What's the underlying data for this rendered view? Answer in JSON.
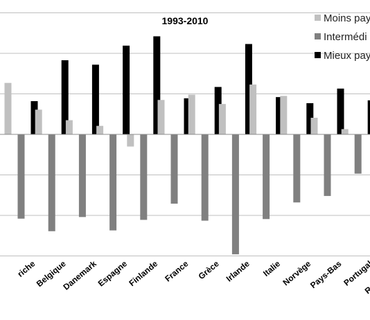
{
  "chart_data": {
    "type": "bar",
    "title": "1993-2010",
    "xlabel": "",
    "ylabel": "",
    "ylim": [
      -3,
      3
    ],
    "grid": true,
    "legend_position": "top-right",
    "categories": [
      "Autriche",
      "Belgique",
      "Danemark",
      "Espagne",
      "Finlande",
      "France",
      "Grèce",
      "Irlande",
      "Italie",
      "Norvège",
      "Pays-Bas",
      "Portugal",
      "Royaume-Uni"
    ],
    "category_labels_visible": [
      "riche",
      "Belgique",
      "Danemark",
      "Espagne",
      "Finlande",
      "France",
      "Grèce",
      "Irlande",
      "Italie",
      "Norvège",
      "Pays-Bas",
      "Portugal",
      "Royaume-U"
    ],
    "series": [
      {
        "name": "Moins payés",
        "legend_label_visible": "Moins pay",
        "color": "#c0c0c0",
        "values": [
          1.27,
          0.61,
          0.35,
          0.21,
          -0.3,
          0.85,
          0.98,
          0.75,
          1.23,
          0.95,
          0.41,
          0.13,
          null
        ]
      },
      {
        "name": "Intermédiaires",
        "legend_label_visible": "Intermédi",
        "color": "#808080",
        "values": [
          -2.08,
          -2.39,
          -2.04,
          -2.37,
          -2.11,
          -1.71,
          -2.13,
          -2.96,
          -2.09,
          -1.68,
          -1.52,
          -0.97,
          null
        ]
      },
      {
        "name": "Mieux payés",
        "legend_label_visible": "Mieux pay",
        "color": "#000000",
        "values": [
          0.82,
          1.83,
          1.72,
          2.19,
          2.42,
          0.89,
          1.17,
          2.23,
          0.92,
          0.77,
          1.13,
          0.84,
          0.84
        ]
      }
    ]
  }
}
